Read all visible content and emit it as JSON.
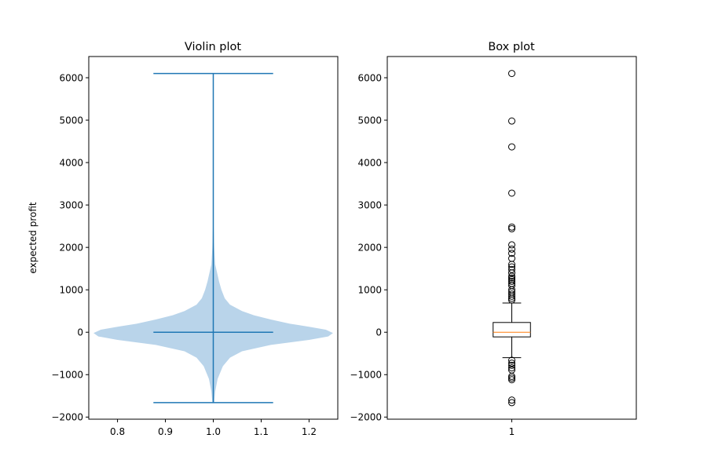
{
  "chart_data": [
    {
      "type": "violin",
      "title": "Violin plot",
      "xlabel": "",
      "ylabel": "expected profit",
      "xlim": [
        0.74,
        1.26
      ],
      "ylim": [
        -2050,
        6500
      ],
      "xticks": [
        "0.8",
        "0.9",
        "1.0",
        "1.1",
        "1.2"
      ],
      "yticks": [
        "−2000",
        "−1000",
        "0",
        "1000",
        "2000",
        "3000",
        "4000",
        "5000",
        "6000"
      ],
      "position": 1.0,
      "min": -1660,
      "max": 6100,
      "median": 0,
      "cap_halfwidth": 0.125,
      "density": [
        {
          "y": -1660,
          "hw": 0.002
        },
        {
          "y": -1400,
          "hw": 0.004
        },
        {
          "y": -1100,
          "hw": 0.009
        },
        {
          "y": -800,
          "hw": 0.02
        },
        {
          "y": -600,
          "hw": 0.035
        },
        {
          "y": -450,
          "hw": 0.06
        },
        {
          "y": -300,
          "hw": 0.12
        },
        {
          "y": -180,
          "hw": 0.2
        },
        {
          "y": -100,
          "hw": 0.24
        },
        {
          "y": -20,
          "hw": 0.25
        },
        {
          "y": 60,
          "hw": 0.235
        },
        {
          "y": 130,
          "hw": 0.2
        },
        {
          "y": 200,
          "hw": 0.16
        },
        {
          "y": 300,
          "hw": 0.12
        },
        {
          "y": 400,
          "hw": 0.085
        },
        {
          "y": 500,
          "hw": 0.06
        },
        {
          "y": 650,
          "hw": 0.035
        },
        {
          "y": 800,
          "hw": 0.024
        },
        {
          "y": 1000,
          "hw": 0.017
        },
        {
          "y": 1200,
          "hw": 0.012
        },
        {
          "y": 1400,
          "hw": 0.008
        },
        {
          "y": 1600,
          "hw": 0.004
        },
        {
          "y": 2000,
          "hw": 0.002
        },
        {
          "y": 2500,
          "hw": 0.0008
        },
        {
          "y": 3200,
          "hw": 0.0002
        }
      ],
      "colors": {
        "body": "#b9d4ea",
        "lines": "#1f77b4"
      }
    },
    {
      "type": "box",
      "title": "Box plot",
      "xlabel": "",
      "ylabel": "",
      "xlim": [
        0.5,
        1.5
      ],
      "ylim": [
        -2050,
        6500
      ],
      "xticks": [
        "1"
      ],
      "yticks": [
        "−2000",
        "−1000",
        "0",
        "1000",
        "2000",
        "3000",
        "4000",
        "5000",
        "6000"
      ],
      "position": 1,
      "q1": -110,
      "median": 0,
      "q3": 230,
      "whisker_low": -600,
      "whisker_high": 690,
      "outliers": [
        6100,
        4980,
        4370,
        3280,
        2480,
        2440,
        2060,
        1960,
        1860,
        1740,
        1600,
        1540,
        1480,
        1400,
        1320,
        1280,
        1240,
        1200,
        1150,
        1100,
        1000,
        950,
        900,
        850,
        800,
        760,
        -660,
        -730,
        -780,
        -840,
        -890,
        -1040,
        -1080,
        -1120,
        -1600,
        -1660
      ],
      "colors": {
        "box": "#000000",
        "median": "#ff7f0e"
      }
    }
  ]
}
